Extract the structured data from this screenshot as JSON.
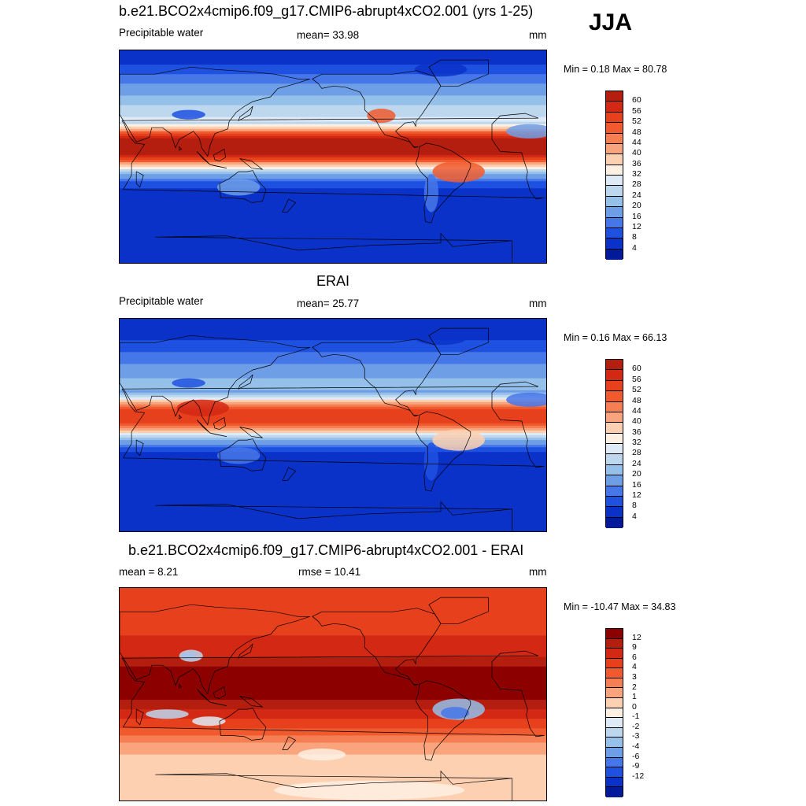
{
  "season": "JJA",
  "colors": {
    "ten_deg_scale": [
      "#b41e0f",
      "#d22814",
      "#e6401c",
      "#f05a2e",
      "#f57e52",
      "#f9a47c",
      "#fdd0b2",
      "#fef0e2",
      "#deebf7",
      "#bdd7ee",
      "#94c0ea",
      "#6e9ee6",
      "#4677e8",
      "#1f51e0",
      "#0a32c8",
      "#001a9a"
    ],
    "diff_scale": [
      "#8c0000",
      "#b41e0f",
      "#d22814",
      "#e6401c",
      "#f05a2e",
      "#f57e52",
      "#f9a47c",
      "#fdd0b2",
      "#fef0e2",
      "#deebf7",
      "#bdd7ee",
      "#94c0ea",
      "#6e9ee6",
      "#4677e8",
      "#1f51e0",
      "#0a32c8",
      "#001a9a"
    ]
  },
  "panels": [
    {
      "title": "b.e21.BCO2x4cmip6.f09_g17.CMIP6-abrupt4xCO2.001 (yrs 1-25)",
      "left_label": "Precipitable water",
      "center_label": "mean=  33.98",
      "right_label": "mm",
      "minmax": "Min =   0.18 Max =  80.78",
      "colorbar_labels": [
        "60",
        "56",
        "52",
        "48",
        "44",
        "40",
        "36",
        "32",
        "28",
        "24",
        "20",
        "16",
        "12",
        "8",
        "4"
      ],
      "field": "model"
    },
    {
      "title": "ERAI",
      "left_label": "Precipitable water",
      "center_label": "mean=  25.77",
      "right_label": "mm",
      "minmax": "Min =   0.16 Max =  66.13",
      "colorbar_labels": [
        "60",
        "56",
        "52",
        "48",
        "44",
        "40",
        "36",
        "32",
        "28",
        "24",
        "20",
        "16",
        "12",
        "8",
        "4"
      ],
      "field": "obs"
    },
    {
      "title": "b.e21.BCO2x4cmip6.f09_g17.CMIP6-abrupt4xCO2.001 - ERAI",
      "left_label": "mean =   8.21",
      "center_label": "rmse =  10.41",
      "right_label": "mm",
      "minmax": "Min = -10.47 Max =  34.83",
      "colorbar_labels": [
        "12",
        "9",
        "6",
        "4",
        "3",
        "2",
        "1",
        "0",
        "-1",
        "-2",
        "-3",
        "-4",
        "-6",
        "-9",
        "-12"
      ],
      "field": "diff"
    }
  ]
}
